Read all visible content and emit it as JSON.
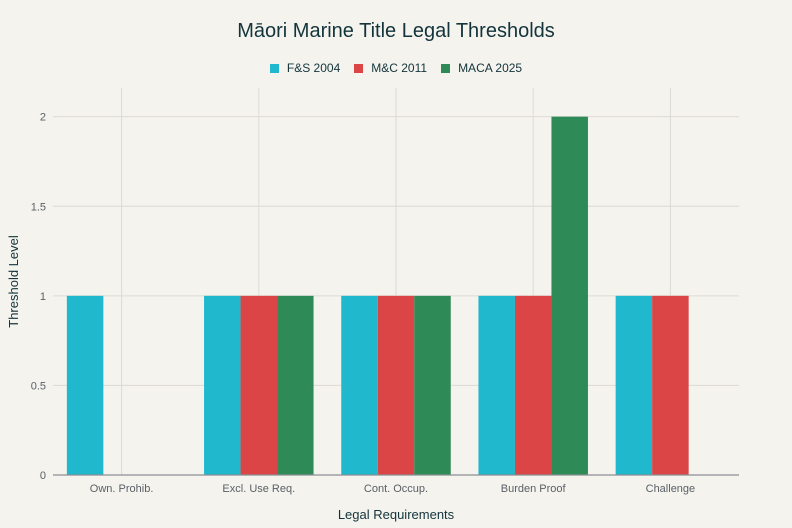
{
  "chart_data": {
    "type": "bar",
    "title": "Māori Marine Title Legal Thresholds",
    "xlabel": "Legal Requirements",
    "ylabel": "Threshold Level",
    "categories": [
      "Own. Prohib.",
      "Excl. Use Req.",
      "Cont. Occup.",
      "Burden Proof",
      "Challenge"
    ],
    "series": [
      {
        "name": "F&S 2004",
        "color": "#1FB8CD",
        "values": [
          1,
          1,
          1,
          1,
          1
        ]
      },
      {
        "name": "M&C 2011",
        "color": "#DB4545",
        "values": [
          0,
          1,
          1,
          1,
          1
        ]
      },
      {
        "name": "MACA 2025",
        "color": "#2E8B57",
        "values": [
          0,
          1,
          1,
          2,
          0
        ]
      }
    ],
    "yticks": [
      "0",
      "0.5",
      "1",
      "1.5",
      "2"
    ],
    "ylim": [
      0,
      2.16
    ],
    "grid": true,
    "legend_position": "top-center"
  }
}
